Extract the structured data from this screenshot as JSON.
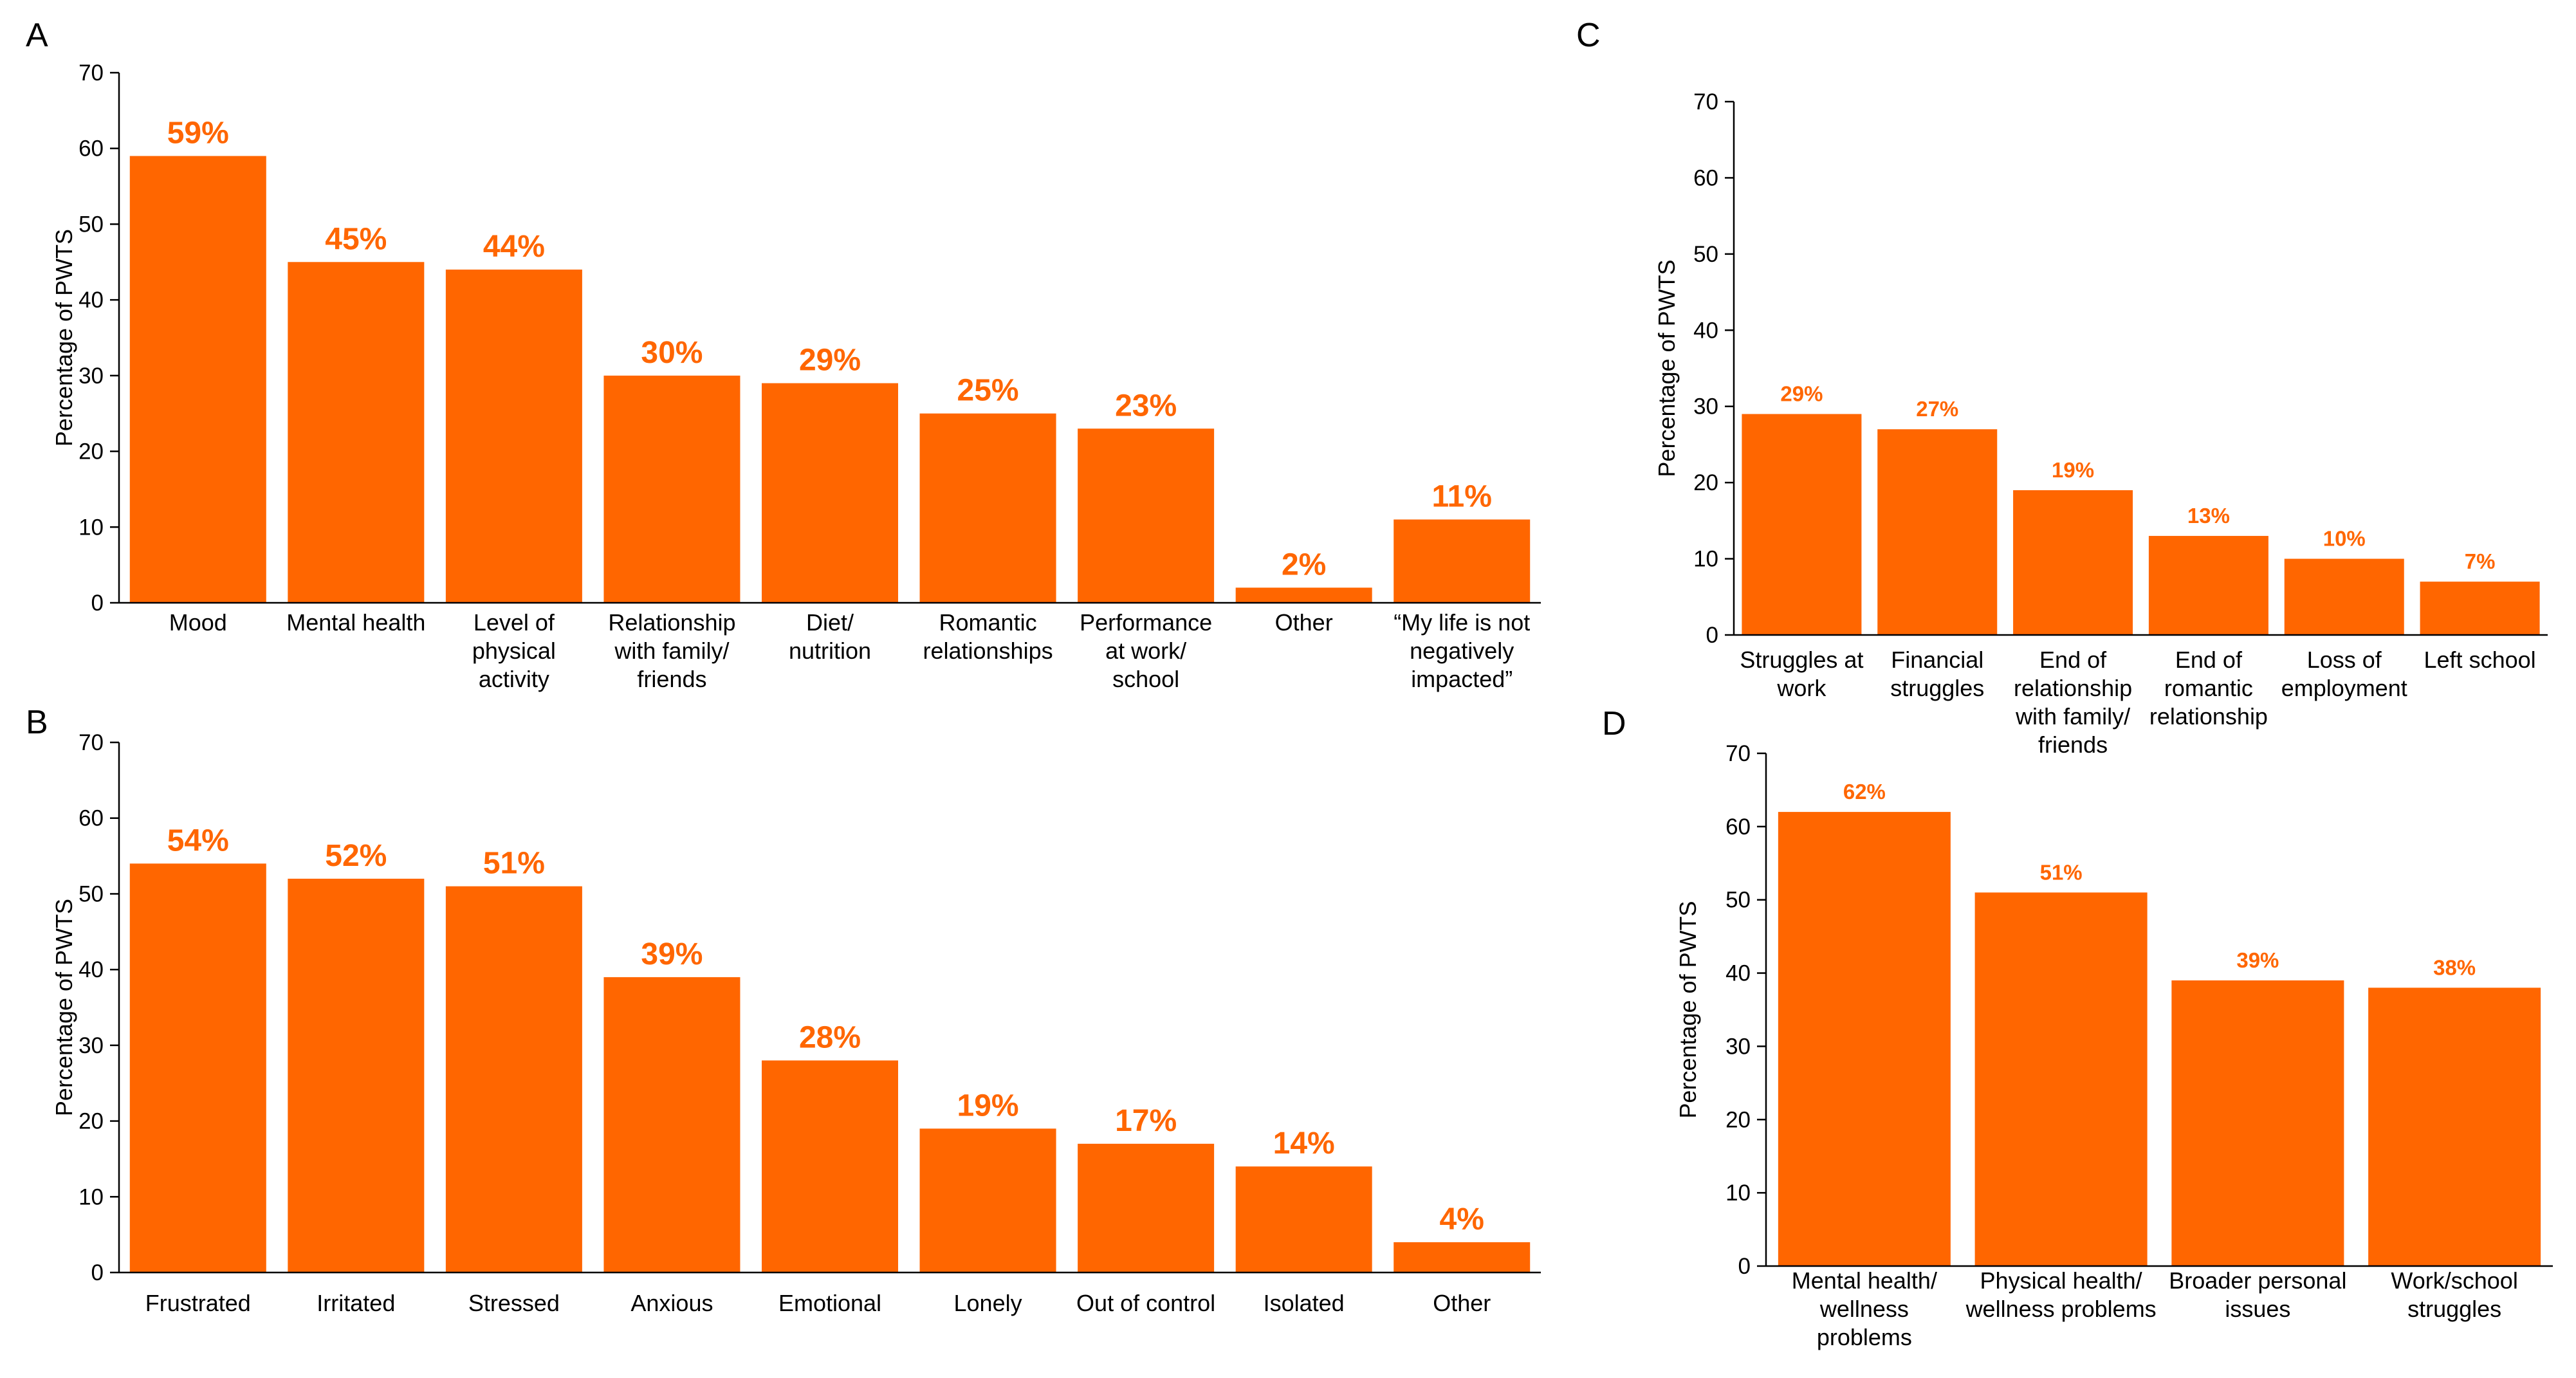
{
  "chart_data": [
    {
      "panel": "A",
      "type": "bar",
      "title": "",
      "xlabel": "",
      "ylabel": "Percentage of PWTS",
      "ylim": [
        0,
        70
      ],
      "yticks": [
        "0",
        "10",
        "20",
        "30",
        "40",
        "50",
        "60",
        "70"
      ],
      "bar_color": "#ff6600",
      "categories": [
        [
          "Mood"
        ],
        [
          "Mental health"
        ],
        [
          "Level of",
          "physical",
          "activity"
        ],
        [
          "Relationship",
          "with family/",
          "friends"
        ],
        [
          "Diet/",
          "nutrition"
        ],
        [
          "Romantic",
          "relationships"
        ],
        [
          "Performance",
          "at work/",
          "school"
        ],
        [
          "Other"
        ],
        [
          "“My life is not",
          "negatively",
          "impacted”"
        ]
      ],
      "values": [
        59,
        45,
        44,
        30,
        29,
        25,
        23,
        2,
        11
      ],
      "data_labels": [
        "59%",
        "45%",
        "44%",
        "30%",
        "29%",
        "25%",
        "23%",
        "2%",
        "11%"
      ]
    },
    {
      "panel": "B",
      "type": "bar",
      "title": "",
      "xlabel": "",
      "ylabel": "Percentage of PWTS",
      "ylim": [
        0,
        70
      ],
      "yticks": [
        "0",
        "10",
        "20",
        "30",
        "40",
        "50",
        "60",
        "70"
      ],
      "bar_color": "#ff6600",
      "categories": [
        [
          "Frustrated"
        ],
        [
          "Irritated"
        ],
        [
          "Stressed"
        ],
        [
          "Anxious"
        ],
        [
          "Emotional"
        ],
        [
          "Lonely"
        ],
        [
          "Out of control"
        ],
        [
          "Isolated"
        ],
        [
          "Other"
        ]
      ],
      "values": [
        54,
        52,
        51,
        39,
        28,
        19,
        17,
        14,
        4
      ],
      "data_labels": [
        "54%",
        "52%",
        "51%",
        "39%",
        "28%",
        "19%",
        "17%",
        "14%",
        "4%"
      ]
    },
    {
      "panel": "C",
      "type": "bar",
      "title": "",
      "xlabel": "",
      "ylabel": "Percentage of PWTS",
      "ylim": [
        0,
        70
      ],
      "yticks": [
        "0",
        "10",
        "20",
        "30",
        "40",
        "50",
        "60",
        "70"
      ],
      "bar_color": "#ff6600",
      "categories": [
        [
          "Struggles at",
          "work"
        ],
        [
          "Financial",
          "struggles"
        ],
        [
          "End of",
          "relationship",
          "with family/",
          "friends"
        ],
        [
          "End of",
          "romantic",
          "relationship"
        ],
        [
          "Loss of",
          "employment"
        ],
        [
          "Left school"
        ]
      ],
      "values": [
        29,
        27,
        19,
        13,
        10,
        7
      ],
      "data_labels": [
        "29%",
        "27%",
        "19%",
        "13%",
        "10%",
        "7%"
      ]
    },
    {
      "panel": "D",
      "type": "bar",
      "title": "",
      "xlabel": "",
      "ylabel": "Percentage of PWTS",
      "ylim": [
        0,
        70
      ],
      "yticks": [
        "0",
        "10",
        "20",
        "30",
        "40",
        "50",
        "60",
        "70"
      ],
      "bar_color": "#ff6600",
      "categories": [
        [
          "Mental health/",
          "wellness",
          "problems"
        ],
        [
          "Physical health/",
          "wellness problems"
        ],
        [
          "Broader personal",
          "issues"
        ],
        [
          "Work/school",
          "struggles"
        ]
      ],
      "values": [
        62,
        51,
        39,
        38
      ],
      "data_labels": [
        "62%",
        "51%",
        "39%",
        "38%"
      ]
    }
  ]
}
